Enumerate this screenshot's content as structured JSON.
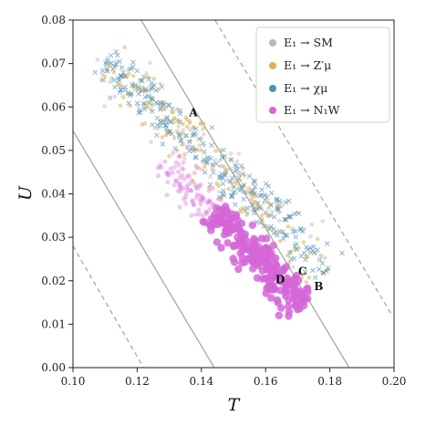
{
  "chart_data": {
    "type": "scatter",
    "xlabel": "T",
    "ylabel": "U",
    "xlim": [
      0.1,
      0.2
    ],
    "ylim": [
      0.0,
      0.08
    ],
    "x_ticks": [
      "0.10",
      "0.12",
      "0.14",
      "0.16",
      "0.18",
      "0.20"
    ],
    "y_ticks": [
      "0.00",
      "0.01",
      "0.02",
      "0.03",
      "0.04",
      "0.05",
      "0.06",
      "0.07",
      "0.08"
    ],
    "legend_position": "top-right",
    "series": [
      {
        "name": "E₁ → SM",
        "color": "#b8b8b8",
        "band": {
          "x_start": 0.109,
          "x_end": 0.178,
          "y_start": 0.072,
          "y_end": 0.024,
          "width": 0.0075
        },
        "count": 110
      },
      {
        "name": "E₁ → Z′μ",
        "color": "#e0b050",
        "band": {
          "x_start": 0.111,
          "x_end": 0.179,
          "y_start": 0.07,
          "y_end": 0.022,
          "width": 0.007
        },
        "count": 140
      },
      {
        "name": "E₁ → χμ",
        "color": "#4f8fb8",
        "band": {
          "x_start": 0.11,
          "x_end": 0.18,
          "y_start": 0.071,
          "y_end": 0.022,
          "width": 0.0065
        },
        "count": 260
      },
      {
        "name": "E₁ → N₁W",
        "color": "#d466d8",
        "band": {
          "x_start": 0.128,
          "x_end": 0.172,
          "y_start": 0.048,
          "y_end": 0.014,
          "width": 0.0055
        },
        "count": 330
      }
    ],
    "reference_lines": [
      {
        "style": "solid",
        "points": [
          [
            0.12,
            0.0815
          ],
          [
            0.186,
            0.0
          ]
        ]
      },
      {
        "style": "dashed",
        "points": [
          [
            0.143,
            0.0815
          ],
          [
            0.199,
            0.0125
          ]
        ]
      },
      {
        "style": "solid",
        "points": [
          [
            0.1,
            0.0545
          ],
          [
            0.144,
            0.0
          ]
        ]
      },
      {
        "style": "dashed",
        "points": [
          [
            0.1,
            0.028
          ],
          [
            0.122,
            0.0
          ]
        ]
      }
    ],
    "point_labels": [
      {
        "text": "A",
        "x": 0.1375,
        "y": 0.0578
      },
      {
        "text": "B",
        "x": 0.1765,
        "y": 0.0178
      },
      {
        "text": "C",
        "x": 0.1715,
        "y": 0.0213
      },
      {
        "text": "D",
        "x": 0.1645,
        "y": 0.0194
      }
    ]
  }
}
